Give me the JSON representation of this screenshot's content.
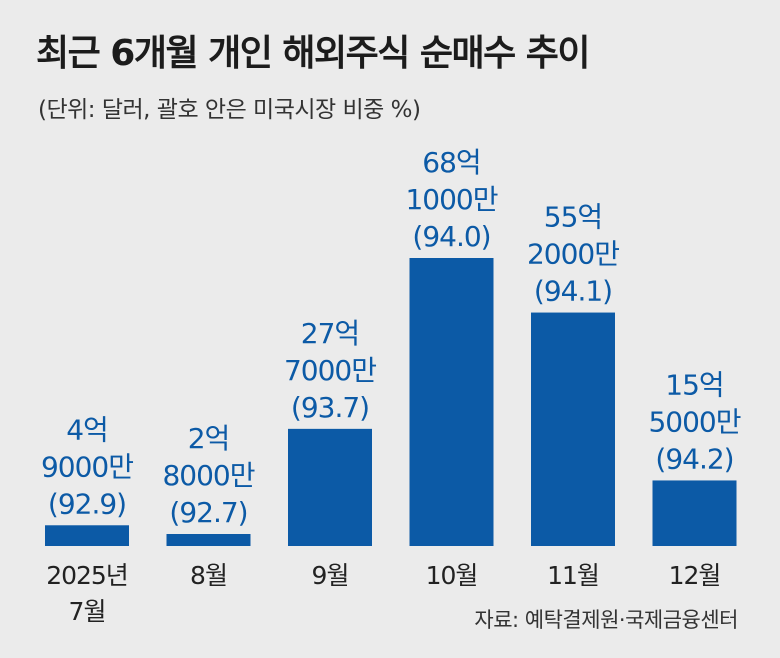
{
  "title": "최근 6개월 개인 해외주식 순매수 추이",
  "subtitle": "(단위: 달러, 괄호 안은 미국시장 비중 %)",
  "source": "자료: 예탁결제원·국제금융센터",
  "colors": {
    "bar": "#0c5aa6",
    "label": "#0c5aa6",
    "axis_text": "#222222",
    "background": "#ebebeb"
  },
  "chart_data": {
    "type": "bar",
    "categories": [
      [
        "2025년",
        "7월"
      ],
      [
        "8월"
      ],
      [
        "9월"
      ],
      [
        "10월"
      ],
      [
        "11월"
      ],
      [
        "12월"
      ]
    ],
    "values": [
      490000000,
      280000000,
      2770000000,
      6810000000,
      5520000000,
      1550000000
    ],
    "data_labels": [
      [
        "4억",
        "9000만",
        "(92.9)"
      ],
      [
        "2억",
        "8000만",
        "(92.7)"
      ],
      [
        "27억",
        "7000만",
        "(93.7)"
      ],
      [
        "68억",
        "1000만",
        "(94.0)"
      ],
      [
        "55억",
        "2000만",
        "(94.1)"
      ],
      [
        "15억",
        "5000만",
        "(94.2)"
      ]
    ],
    "us_market_share_pct": [
      92.9,
      92.7,
      93.7,
      94.0,
      94.1,
      94.2
    ],
    "ylim": [
      0,
      6810000000
    ],
    "grid": false
  }
}
